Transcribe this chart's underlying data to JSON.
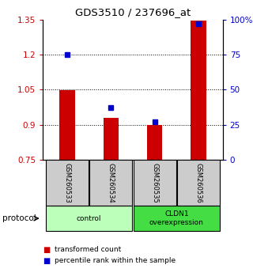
{
  "title": "GDS3510 / 237696_at",
  "samples": [
    "GSM260533",
    "GSM260534",
    "GSM260535",
    "GSM260536"
  ],
  "bar_values": [
    1.046,
    0.928,
    0.898,
    1.345
  ],
  "bar_bottom": 0.75,
  "percentile_values": [
    75,
    37,
    27,
    97
  ],
  "ylim_left": [
    0.75,
    1.35
  ],
  "ylim_right": [
    0,
    100
  ],
  "yticks_left": [
    0.75,
    0.9,
    1.05,
    1.2,
    1.35
  ],
  "ytick_labels_left": [
    "0.75",
    "0.9",
    "1.05",
    "1.2",
    "1.35"
  ],
  "yticks_right": [
    0,
    25,
    50,
    75,
    100
  ],
  "ytick_labels_right": [
    "0",
    "25",
    "50",
    "75",
    "100%"
  ],
  "bar_color": "#cc0000",
  "dot_color": "#0000cc",
  "groups": [
    {
      "label": "control",
      "indices": [
        0,
        1
      ],
      "color": "#bbffbb"
    },
    {
      "label": "CLDN1\noverexpression",
      "indices": [
        2,
        3
      ],
      "color": "#44dd44"
    }
  ],
  "protocol_label": "protocol",
  "legend_bar_label": "transformed count",
  "legend_dot_label": "percentile rank within the sample",
  "sample_box_color": "#cccccc",
  "bg_color": "#ffffff"
}
